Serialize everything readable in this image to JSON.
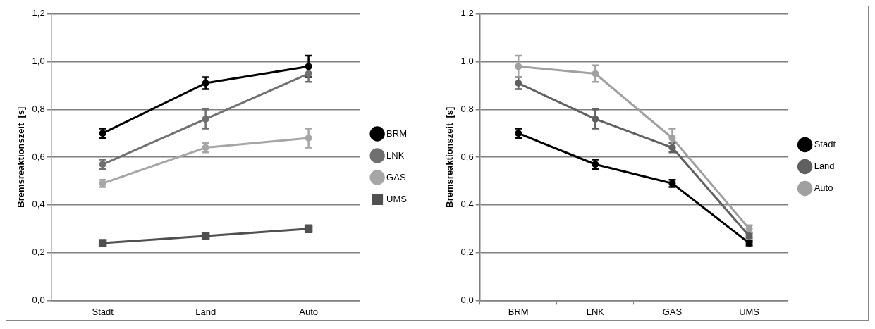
{
  "chart_data": [
    {
      "type": "line",
      "ylabel": "Bremsreaktionszeit  [s]",
      "categories": [
        "Stadt",
        "Land",
        "Auto"
      ],
      "ylim": [
        0,
        1.2
      ],
      "yticks": [
        {
          "value": 0,
          "label": "0,0"
        },
        {
          "value": 0.2,
          "label": "0,2"
        },
        {
          "value": 0.4,
          "label": "0,4"
        },
        {
          "value": 0.6,
          "label": "0,6"
        },
        {
          "value": 0.8,
          "label": "0,8"
        },
        {
          "value": 1,
          "label": "1,0"
        },
        {
          "value": 1.2,
          "label": "1,2"
        }
      ],
      "grid": "y",
      "legend": "right",
      "series": [
        {
          "name": "BRM",
          "color": "#000000",
          "marker": "circle",
          "values": [
            0.7,
            0.91,
            0.98
          ],
          "errors": [
            0.02,
            0.025,
            0.045
          ]
        },
        {
          "name": "LNK",
          "color": "#707070",
          "marker": "circle",
          "values": [
            0.57,
            0.76,
            0.95
          ],
          "errors": [
            0.02,
            0.04,
            0.035
          ]
        },
        {
          "name": "GAS",
          "color": "#a6a6a6",
          "marker": "circle",
          "values": [
            0.49,
            0.64,
            0.68
          ],
          "errors": [
            0.015,
            0.02,
            0.04
          ]
        },
        {
          "name": "UMS",
          "color": "#505050",
          "marker": "square",
          "values": [
            0.24,
            0.27,
            0.3
          ],
          "errors": [
            null,
            null,
            0.015
          ]
        }
      ]
    },
    {
      "type": "line",
      "ylabel": "Bremsreaktionszeit  [s]",
      "categories": [
        "BRM",
        "LNK",
        "GAS",
        "UMS"
      ],
      "ylim": [
        0,
        1.2
      ],
      "yticks": [
        {
          "value": 0,
          "label": "0,0"
        },
        {
          "value": 0.2,
          "label": "0,2"
        },
        {
          "value": 0.4,
          "label": "0,4"
        },
        {
          "value": 0.6,
          "label": "0,6"
        },
        {
          "value": 0.8,
          "label": "0,8"
        },
        {
          "value": 1,
          "label": "1,0"
        },
        {
          "value": 1.2,
          "label": "1,2"
        }
      ],
      "grid": "y",
      "legend": "right",
      "series": [
        {
          "name": "Stadt",
          "color": "#000000",
          "marker": "circle",
          "values": [
            0.7,
            0.57,
            0.49,
            0.24
          ],
          "errors": [
            0.02,
            0.02,
            0.015,
            0.01
          ]
        },
        {
          "name": "Land",
          "color": "#606060",
          "marker": "circle",
          "values": [
            0.91,
            0.76,
            0.64,
            0.27
          ],
          "errors": [
            0.025,
            0.04,
            0.02,
            0.01
          ]
        },
        {
          "name": "Auto",
          "color": "#a0a0a0",
          "marker": "circle",
          "values": [
            0.98,
            0.95,
            0.68,
            0.3
          ],
          "errors": [
            0.045,
            0.035,
            0.04,
            0.015
          ]
        }
      ]
    }
  ]
}
